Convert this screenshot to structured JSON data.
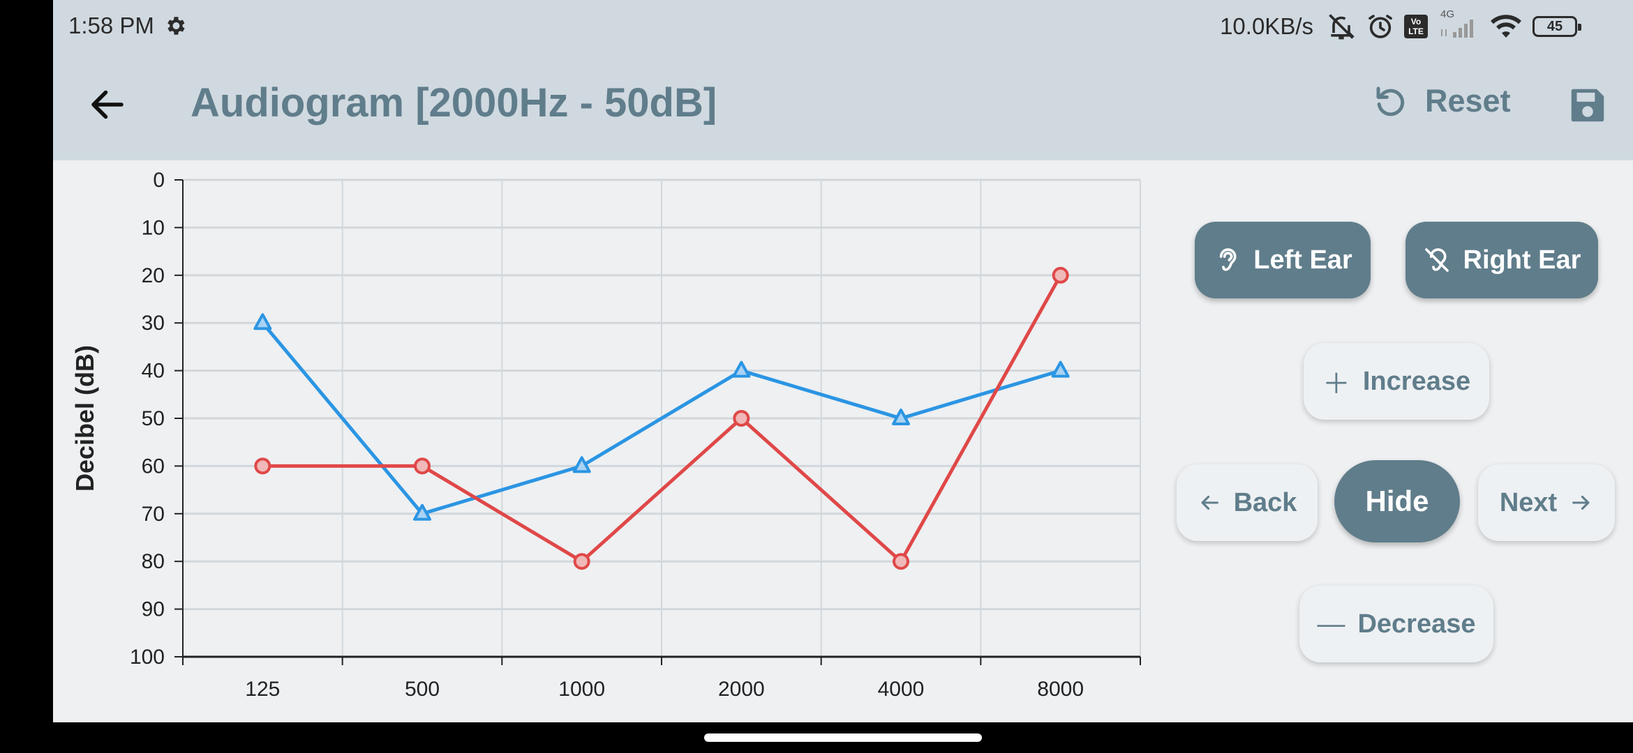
{
  "status": {
    "time": "1:58 PM",
    "net_speed": "10.0KB/s",
    "network": "4G",
    "volte": "Vo LTE",
    "battery": "45",
    "icons": [
      "gear-icon",
      "mute-icon",
      "alarm-icon",
      "volte-icon",
      "cell-signal-icon",
      "wifi-icon",
      "battery-icon"
    ]
  },
  "appbar": {
    "title": "Audiogram [2000Hz - 50dB]",
    "reset_label": "Reset",
    "icons": [
      "back-arrow-icon",
      "reset-icon",
      "save-icon"
    ]
  },
  "controls": {
    "left_ear": "Left Ear",
    "right_ear": "Right Ear",
    "increase": "Increase",
    "back": "Back",
    "hide": "Hide",
    "next": "Next",
    "decrease": "Decrease",
    "icons": [
      "ear-icon",
      "ear-off-icon",
      "plus-icon",
      "arrow-left-icon",
      "arrow-right-icon",
      "minus-icon"
    ]
  },
  "chart_data": {
    "type": "line",
    "categories": [
      "125",
      "500",
      "1000",
      "2000",
      "4000",
      "8000"
    ],
    "ylabel": "Decibel (dB)",
    "xlabel": "",
    "ylim": [
      0,
      100
    ],
    "y_inverted": true,
    "y_ticks": [
      0,
      10,
      20,
      30,
      40,
      50,
      60,
      70,
      80,
      90,
      100
    ],
    "grid": true,
    "series": [
      {
        "marker": "triangle",
        "color": "#2b95e3",
        "values": [
          30,
          70,
          60,
          40,
          50,
          40
        ]
      },
      {
        "marker": "circle",
        "color": "#e04848",
        "values": [
          60,
          60,
          80,
          50,
          80,
          20
        ]
      }
    ]
  }
}
